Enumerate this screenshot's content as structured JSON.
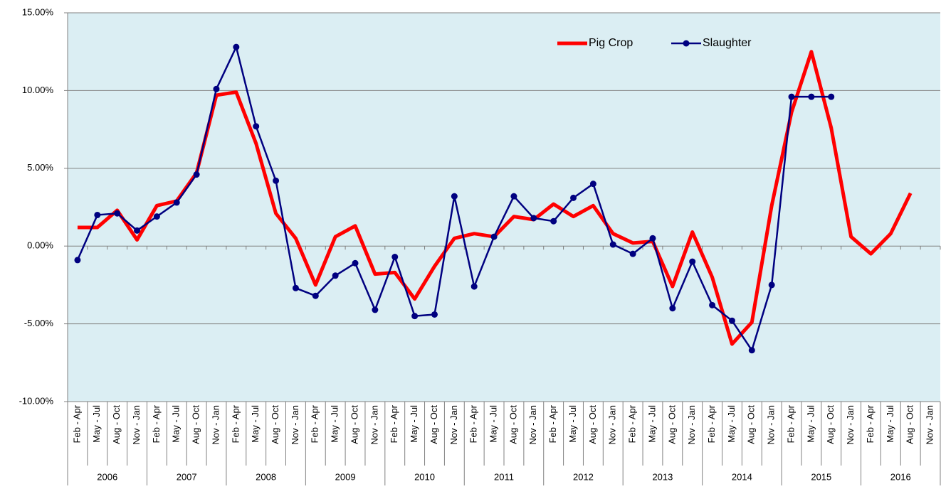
{
  "chart_data": {
    "type": "line",
    "categories": [
      "Feb - Apr",
      "May - Jul",
      "Aug - Oct",
      "Nov - Jan",
      "Feb - Apr",
      "May - Jul",
      "Aug - Oct",
      "Nov - Jan",
      "Feb - Apr",
      "May - Jul",
      "Aug - Oct",
      "Nov - Jan",
      "Feb - Apr",
      "May - Jul",
      "Aug - Oct",
      "Nov - Jan",
      "Feb - Apr",
      "May - Jul",
      "Aug - Oct",
      "Nov - Jan",
      "Feb - Apr",
      "May - Jul",
      "Aug - Oct",
      "Nov - Jan",
      "Feb - Apr",
      "May - Jul",
      "Aug - Oct",
      "Nov - Jan",
      "Feb - Apr",
      "May - Jul",
      "Aug - Oct",
      "Nov - Jan",
      "Feb - Apr",
      "May - Jul",
      "Aug - Oct",
      "Nov - Jan",
      "Feb - Apr",
      "May - Jul",
      "Aug - Oct",
      "Nov - Jan",
      "Feb - Apr",
      "May - Jul",
      "Aug - Oct",
      "Nov - Jan"
    ],
    "groups": [
      "2006",
      "2007",
      "2008",
      "2009",
      "2010",
      "2011",
      "2012",
      "2013",
      "2014",
      "2015",
      "2016"
    ],
    "series": [
      {
        "name": "Pig Crop",
        "color": "#ff0000",
        "values": [
          1.2,
          1.2,
          2.3,
          0.4,
          2.6,
          2.9,
          4.7,
          9.7,
          9.9,
          6.6,
          2.1,
          0.5,
          -2.5,
          0.6,
          1.3,
          -1.8,
          -1.7,
          -3.4,
          -1.3,
          0.5,
          0.8,
          0.6,
          1.9,
          1.7,
          2.7,
          1.9,
          2.6,
          0.8,
          0.2,
          0.3,
          -2.6,
          0.9,
          -2.0,
          -6.3,
          -4.9,
          2.6,
          8.6,
          12.5,
          7.6,
          0.6,
          -0.5,
          0.8,
          3.4,
          null
        ]
      },
      {
        "name": "Slaughter",
        "color": "#000080",
        "marker": true,
        "values": [
          -0.9,
          2.0,
          2.1,
          1.0,
          1.9,
          2.8,
          4.6,
          10.1,
          12.8,
          7.7,
          4.2,
          -2.7,
          -3.2,
          -1.9,
          -1.1,
          -4.1,
          -0.7,
          -4.5,
          -4.4,
          3.2,
          -2.6,
          0.6,
          3.2,
          1.8,
          1.6,
          3.1,
          4.0,
          0.1,
          -0.5,
          0.5,
          -4.0,
          -1.0,
          -3.8,
          -4.8,
          -6.7,
          -2.5,
          9.6,
          9.6,
          9.6,
          null,
          null,
          null,
          null,
          null
        ]
      }
    ],
    "ylim": [
      -10,
      15
    ],
    "yticks": [
      {
        "value": -10,
        "label": "-10.00%"
      },
      {
        "value": -5,
        "label": "-5.00%"
      },
      {
        "value": 0,
        "label": "0.00%"
      },
      {
        "value": 5,
        "label": "5.00%"
      },
      {
        "value": 10,
        "label": "10.00%"
      },
      {
        "value": 15,
        "label": "15.00%"
      }
    ],
    "grid": true,
    "legend": "top-right",
    "background": "#dbeef3"
  }
}
